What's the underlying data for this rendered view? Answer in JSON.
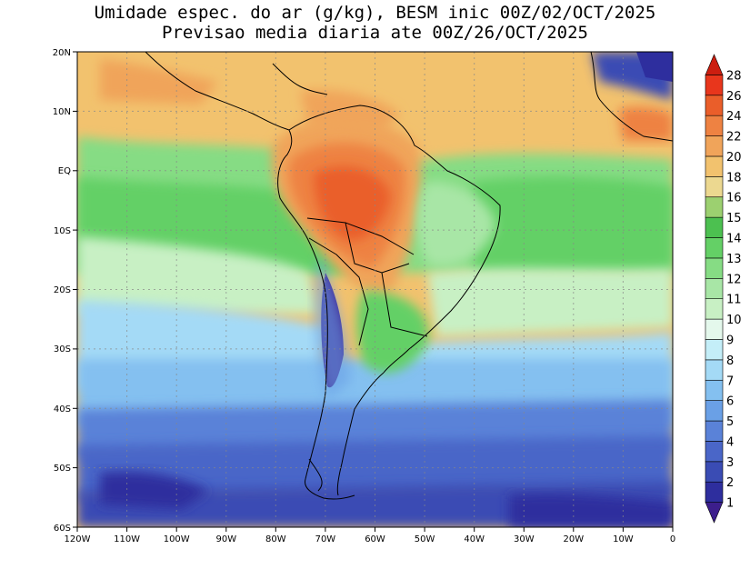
{
  "title_line1": "Umidade espec. do ar (g/kg), BESM inic 00Z/02/OCT/2025",
  "title_line2": "Previsao media diaria ate 00Z/26/OCT/2025",
  "lat_labels": [
    "20N",
    "10N",
    "EQ",
    "10S",
    "20S",
    "30S",
    "40S",
    "50S",
    "60S"
  ],
  "lon_labels": [
    "120W",
    "110W",
    "100W",
    "90W",
    "80W",
    "70W",
    "60W",
    "50W",
    "40W",
    "30W",
    "20W",
    "10W",
    "0"
  ],
  "colorbar": {
    "labels": [
      "1",
      "2",
      "3",
      "4",
      "5",
      "6",
      "7",
      "8",
      "9",
      "10",
      "11",
      "12",
      "13",
      "14",
      "15",
      "16",
      "18",
      "20",
      "22",
      "24",
      "26",
      "28"
    ],
    "colors": [
      "#3c1e8c",
      "#2e2e9e",
      "#3a4cb4",
      "#4a66c8",
      "#5a82d8",
      "#6aa0e6",
      "#84c0f0",
      "#a4daf6",
      "#c4eef8",
      "#e4f8ec",
      "#c8f0c4",
      "#a8e6a6",
      "#86dc84",
      "#64d066",
      "#4cc050",
      "#9cd070",
      "#ecd890",
      "#f2c26e",
      "#f0a45a",
      "#ee8242",
      "#ea5e2a",
      "#e8361c",
      "#cc1e10"
    ]
  }
}
